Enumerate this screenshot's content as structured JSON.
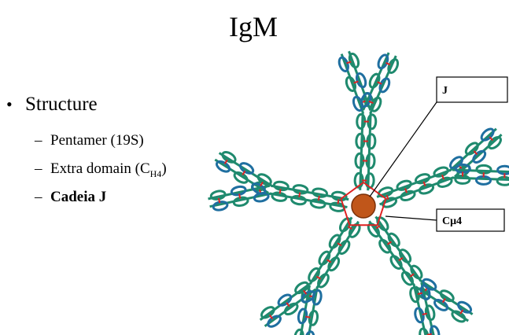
{
  "title": "IgM",
  "bullets": [
    {
      "text": "Structure",
      "items": [
        {
          "text": "Pentamer (19S)"
        },
        {
          "text": "Extra domain (C",
          "sub": "H4",
          "after": ")"
        },
        {
          "text": "Cadeia J"
        }
      ]
    }
  ],
  "diagram": {
    "labels": [
      "J",
      "Cμ4"
    ]
  }
}
